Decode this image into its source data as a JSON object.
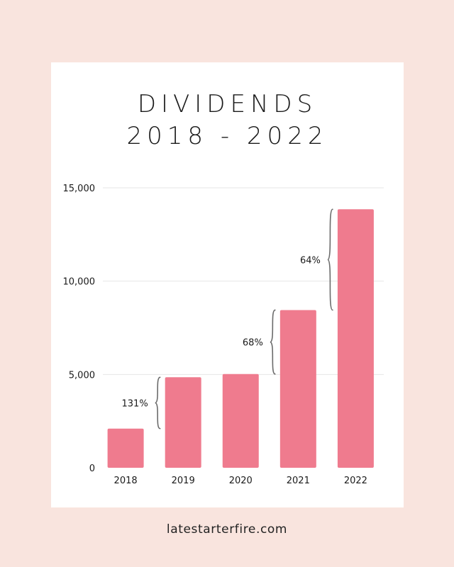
{
  "header": {
    "title_line1": "DIVIDENDS",
    "title_line2": "2018 - 2022"
  },
  "footer": {
    "website": "latestarterfire.com"
  },
  "colors": {
    "page_background": "#f9e4de",
    "card_background": "#ffffff",
    "bar": "#ef7b8e",
    "gridline": "#e6e6e6",
    "brace": "#6b6b6b",
    "text": "#1a1a1a"
  },
  "chart_data": {
    "type": "bar",
    "categories": [
      "2018",
      "2019",
      "2020",
      "2021",
      "2022"
    ],
    "values": [
      2100,
      4850,
      5020,
      8450,
      13850
    ],
    "ylim": [
      0,
      15000
    ],
    "yticks": [
      0,
      5000,
      10000,
      15000
    ],
    "ytick_labels": [
      "0",
      "5,000",
      "10,000",
      "15,000"
    ],
    "grid": true,
    "legend": "none",
    "annotations": [
      {
        "label": "131%",
        "from": "2018",
        "to": "2019",
        "y_from": 2100,
        "y_to": 4850
      },
      {
        "label": "68%",
        "from": "2020",
        "to": "2021",
        "y_from": 5020,
        "y_to": 8450
      },
      {
        "label": "64%",
        "from": "2021",
        "to": "2022",
        "y_from": 8450,
        "y_to": 13850
      }
    ]
  }
}
